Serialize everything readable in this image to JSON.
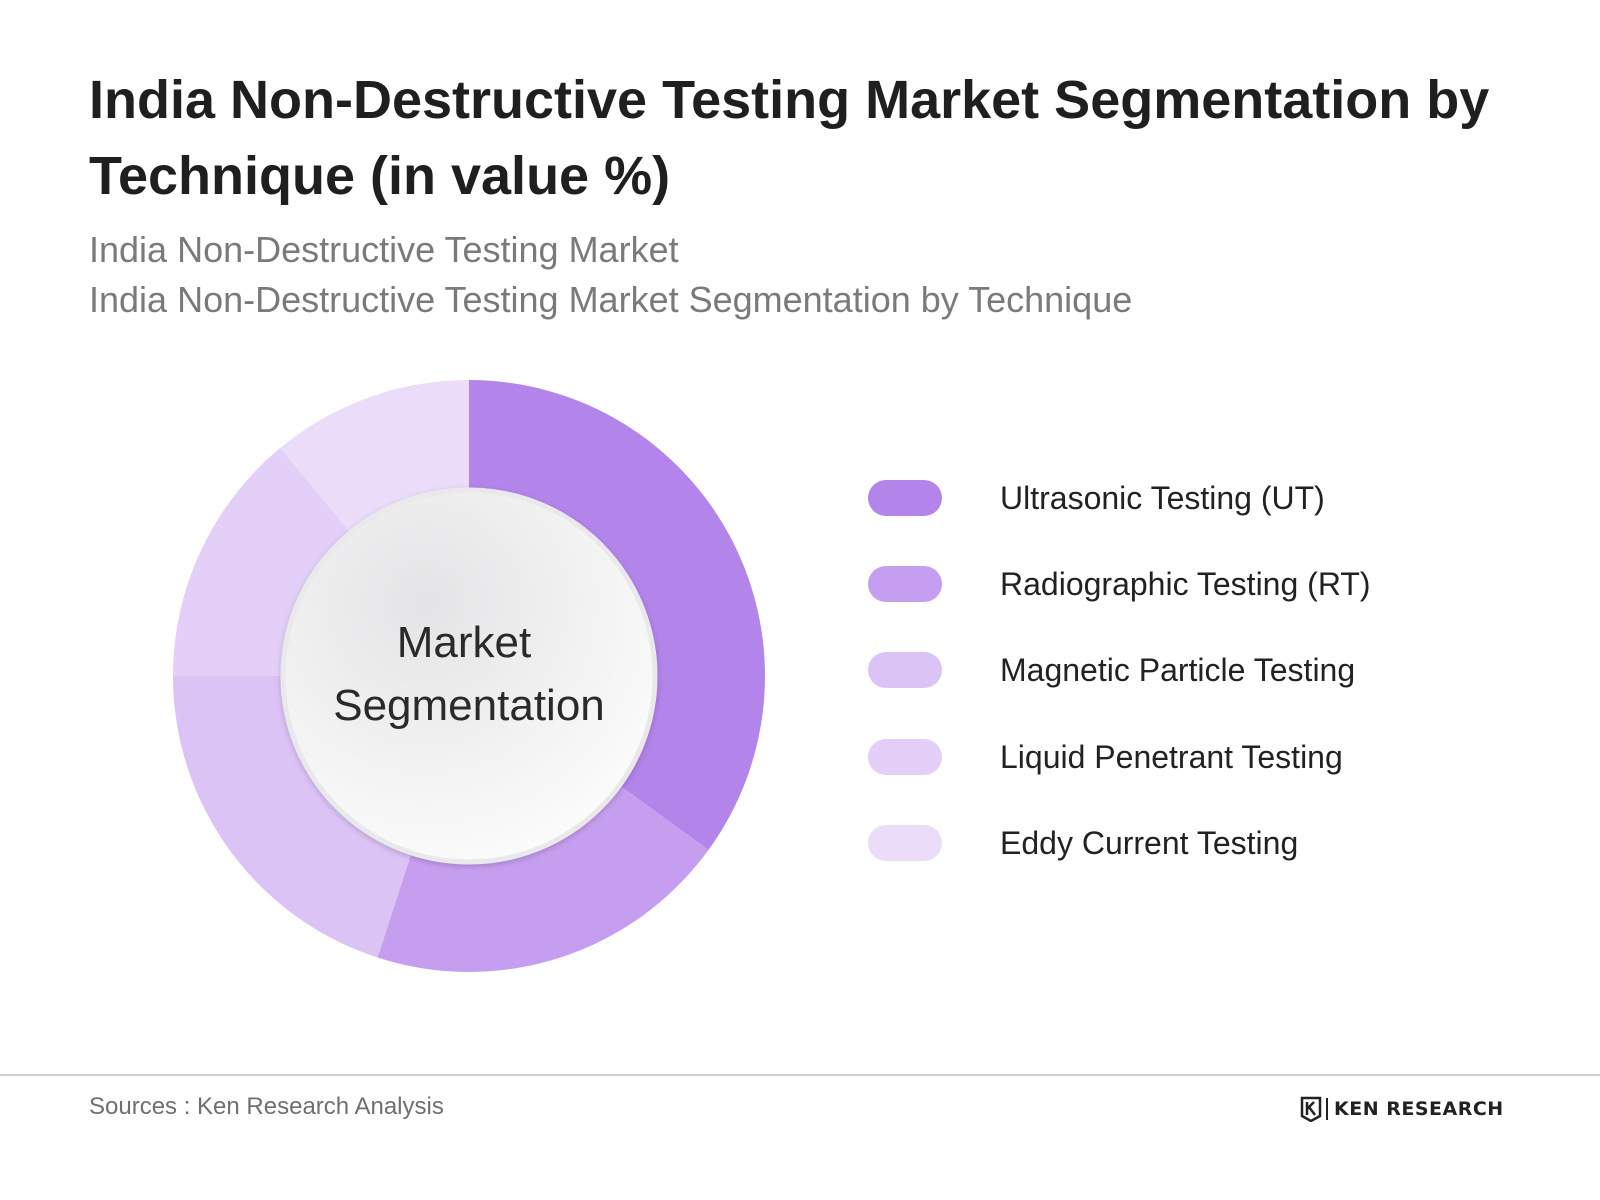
{
  "title": "India Non-Destructive Testing Market Segmentation by Technique (in value %)",
  "subtitles": [
    "India Non-Destructive Testing Market",
    "India Non-Destructive Testing Market Segmentation by Technique"
  ],
  "center_label_lines": [
    "Market",
    "Segmentation"
  ],
  "chart_data": {
    "type": "pie",
    "title": "India Non-Destructive Testing Market Segmentation by Technique (in value %)",
    "categories": [
      "Ultrasonic Testing (UT)",
      "Radiographic Testing (RT)",
      "Magnetic Particle Testing",
      "Liquid Penetrant Testing",
      "Eddy Current Testing"
    ],
    "values": [
      35,
      20,
      20,
      14,
      11
    ],
    "colors": [
      "#b384ea",
      "#c69ef0",
      "#dbc3f6",
      "#e3cff7",
      "#ebdcf9"
    ],
    "legend_position": "right",
    "donut": true
  },
  "footer": {
    "sources": "Sources : Ken Research Analysis",
    "brand": "KEN RESEARCH"
  }
}
